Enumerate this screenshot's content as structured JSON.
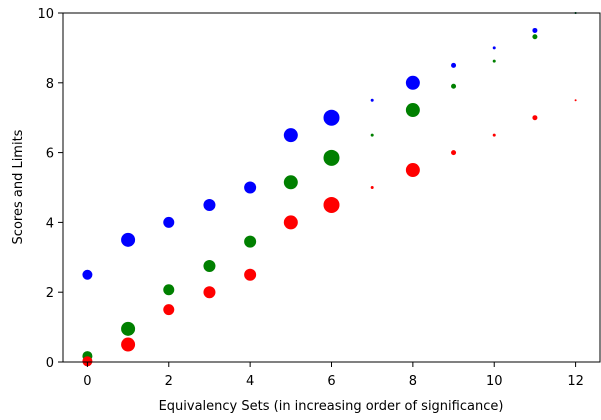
{
  "chart_data": {
    "type": "scatter",
    "title": "",
    "xlabel": "Equivalency Sets (in increasing order of significance)",
    "ylabel": "Scores and Limits",
    "xlim": [
      -0.6,
      12.6
    ],
    "ylim": [
      0,
      10
    ],
    "x_ticks": [
      0,
      2,
      4,
      6,
      8,
      10,
      12
    ],
    "y_ticks": [
      0,
      2,
      4,
      6,
      8,
      10
    ],
    "grid": false,
    "legend": "none",
    "series": [
      {
        "color": "#0000ff",
        "points": [
          {
            "x": 0,
            "y": 2.5,
            "size": 5
          },
          {
            "x": 1,
            "y": 3.5,
            "size": 7
          },
          {
            "x": 2,
            "y": 4.0,
            "size": 5.5
          },
          {
            "x": 3,
            "y": 4.5,
            "size": 6
          },
          {
            "x": 4,
            "y": 5.0,
            "size": 6
          },
          {
            "x": 5,
            "y": 6.5,
            "size": 7
          },
          {
            "x": 6,
            "y": 7.0,
            "size": 8
          },
          {
            "x": 7,
            "y": 7.5,
            "size": 1.5
          },
          {
            "x": 8,
            "y": 8.0,
            "size": 7
          },
          {
            "x": 9,
            "y": 8.5,
            "size": 2.5
          },
          {
            "x": 10,
            "y": 9.0,
            "size": 1.5
          },
          {
            "x": 11,
            "y": 9.5,
            "size": 2.5
          },
          {
            "x": 12,
            "y": 10.0,
            "size": 1
          }
        ]
      },
      {
        "color": "#008000",
        "points": [
          {
            "x": 0,
            "y": 0.17,
            "size": 5
          },
          {
            "x": 1,
            "y": 0.95,
            "size": 7
          },
          {
            "x": 2,
            "y": 2.07,
            "size": 5.5
          },
          {
            "x": 3,
            "y": 2.75,
            "size": 6
          },
          {
            "x": 4,
            "y": 3.45,
            "size": 6
          },
          {
            "x": 5,
            "y": 5.15,
            "size": 7
          },
          {
            "x": 6,
            "y": 5.85,
            "size": 8
          },
          {
            "x": 7,
            "y": 6.5,
            "size": 1.5
          },
          {
            "x": 8,
            "y": 7.22,
            "size": 7
          },
          {
            "x": 9,
            "y": 7.9,
            "size": 2.5
          },
          {
            "x": 10,
            "y": 8.62,
            "size": 1.5
          },
          {
            "x": 11,
            "y": 9.32,
            "size": 2.5
          },
          {
            "x": 12,
            "y": 10.0,
            "size": 1
          }
        ]
      },
      {
        "color": "#ff0000",
        "points": [
          {
            "x": 0,
            "y": 0.02,
            "size": 5
          },
          {
            "x": 1,
            "y": 0.5,
            "size": 7
          },
          {
            "x": 2,
            "y": 1.5,
            "size": 5.5
          },
          {
            "x": 3,
            "y": 2.0,
            "size": 6
          },
          {
            "x": 4,
            "y": 2.5,
            "size": 6
          },
          {
            "x": 5,
            "y": 4.0,
            "size": 7
          },
          {
            "x": 6,
            "y": 4.5,
            "size": 8
          },
          {
            "x": 7,
            "y": 5.0,
            "size": 1.5
          },
          {
            "x": 8,
            "y": 5.5,
            "size": 7
          },
          {
            "x": 9,
            "y": 6.0,
            "size": 2.5
          },
          {
            "x": 10,
            "y": 6.5,
            "size": 1.5
          },
          {
            "x": 11,
            "y": 7.0,
            "size": 2.5
          },
          {
            "x": 12,
            "y": 7.5,
            "size": 1
          }
        ]
      }
    ]
  }
}
